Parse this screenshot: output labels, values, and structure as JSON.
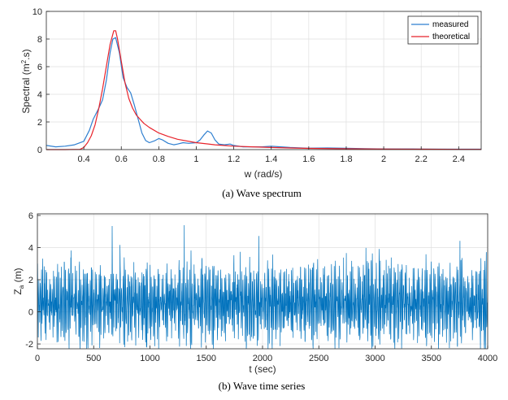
{
  "chart_data": [
    {
      "type": "line",
      "caption": "(a)  Wave  spectrum",
      "xlabel": "w (rad/s)",
      "ylabel_base": "Spectral (m",
      "ylabel_sup": "2",
      "ylabel_tail": ".s)",
      "xlim": [
        0.2,
        2.52
      ],
      "ylim": [
        0,
        10
      ],
      "xticks": [
        "0.4",
        "0.6",
        "0.8",
        "1",
        "1.2",
        "1.4",
        "1.6",
        "1.8",
        "2",
        "2.2",
        "2.4"
      ],
      "yticks": [
        "0",
        "2",
        "4",
        "6",
        "8",
        "10"
      ],
      "grid": true,
      "legend_position": "top-right",
      "series": [
        {
          "name": "measured",
          "color": "#2f7fd0",
          "x": [
            0.2,
            0.25,
            0.3,
            0.35,
            0.4,
            0.43,
            0.45,
            0.48,
            0.5,
            0.52,
            0.54,
            0.555,
            0.57,
            0.59,
            0.61,
            0.63,
            0.65,
            0.67,
            0.69,
            0.71,
            0.73,
            0.75,
            0.78,
            0.8,
            0.82,
            0.85,
            0.88,
            0.9,
            0.93,
            0.96,
            1.0,
            1.02,
            1.04,
            1.06,
            1.08,
            1.1,
            1.12,
            1.15,
            1.18,
            1.2,
            1.25,
            1.3,
            1.35,
            1.4,
            1.45,
            1.5,
            1.6,
            1.7,
            1.8,
            1.9,
            2.0,
            2.2,
            2.4,
            2.52
          ],
          "y": [
            0.3,
            0.2,
            0.25,
            0.35,
            0.6,
            1.4,
            2.2,
            3.0,
            3.6,
            5.0,
            7.0,
            8.0,
            8.1,
            7.0,
            5.2,
            4.5,
            4.1,
            3.2,
            2.2,
            1.2,
            0.65,
            0.5,
            0.65,
            0.8,
            0.7,
            0.45,
            0.35,
            0.4,
            0.5,
            0.45,
            0.5,
            0.7,
            1.05,
            1.35,
            1.2,
            0.7,
            0.4,
            0.35,
            0.4,
            0.3,
            0.2,
            0.2,
            0.2,
            0.25,
            0.2,
            0.15,
            0.1,
            0.12,
            0.1,
            0.07,
            0.05,
            0.04,
            0.03,
            0.03
          ]
        },
        {
          "name": "theoretical",
          "color": "#e8232b",
          "x": [
            0.2,
            0.3,
            0.38,
            0.4,
            0.42,
            0.44,
            0.46,
            0.48,
            0.5,
            0.52,
            0.54,
            0.56,
            0.57,
            0.58,
            0.6,
            0.62,
            0.64,
            0.66,
            0.68,
            0.7,
            0.72,
            0.75,
            0.8,
            0.85,
            0.9,
            1.0,
            1.1,
            1.2,
            1.3,
            1.4,
            1.5,
            1.6,
            1.8,
            2.0,
            2.2,
            2.4,
            2.52
          ],
          "y": [
            0,
            0,
            0.02,
            0.15,
            0.5,
            1.0,
            1.8,
            3.0,
            4.4,
            6.0,
            7.6,
            8.6,
            8.6,
            8.0,
            6.4,
            4.8,
            3.7,
            3.0,
            2.5,
            2.2,
            1.9,
            1.6,
            1.2,
            0.95,
            0.75,
            0.5,
            0.35,
            0.25,
            0.2,
            0.15,
            0.12,
            0.09,
            0.06,
            0.04,
            0.03,
            0.02,
            0.02
          ]
        }
      ]
    },
    {
      "type": "line",
      "caption": "(b)  Wave  time  series",
      "xlabel": "t (sec)",
      "ylabel_base": "Z",
      "ylabel_sub": "a",
      "ylabel_tail": " (m)",
      "xlim": [
        0,
        4000
      ],
      "ylim": [
        -2.3,
        6.1
      ],
      "xticks": [
        "0",
        "500",
        "1000",
        "1500",
        "2000",
        "2500",
        "3000",
        "3500",
        "4000"
      ],
      "yticks": [
        "-2",
        "0",
        "2",
        "4",
        "6"
      ],
      "grid": true,
      "series": [
        {
          "color": "#0072bd",
          "approx_range": [
            -2.3,
            6.1
          ],
          "approx_mean": 0.5,
          "x": [
            0,
            4000
          ]
        }
      ]
    }
  ]
}
